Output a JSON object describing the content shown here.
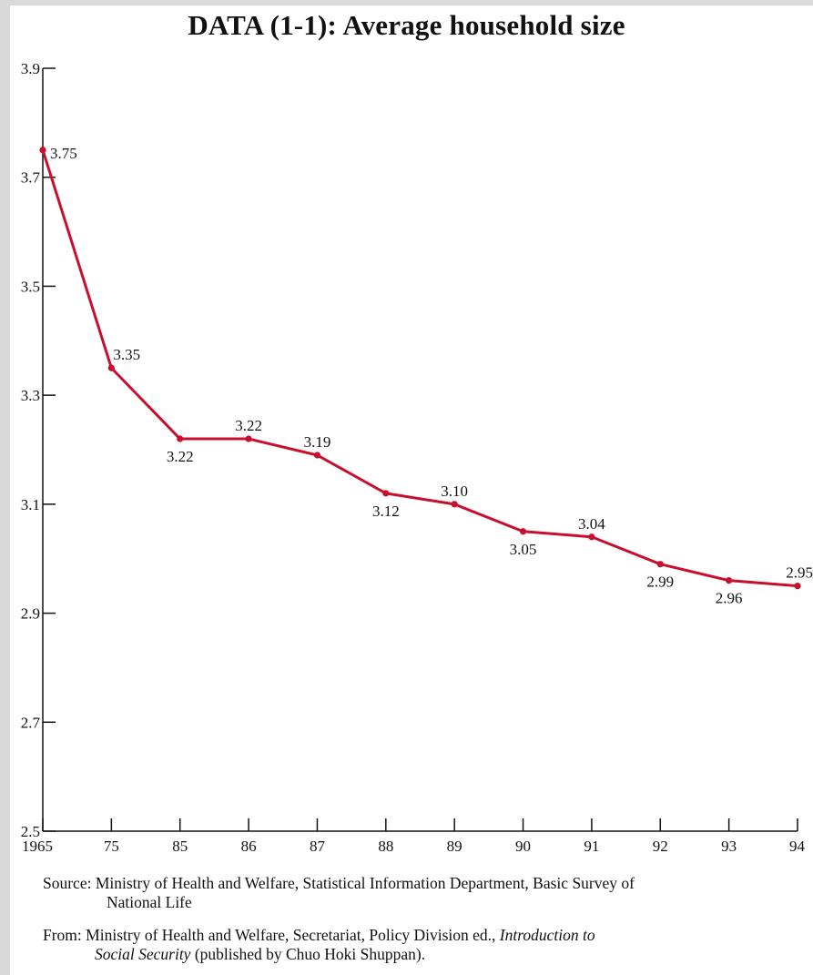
{
  "page": {
    "title": "DATA (1-1): Average household size",
    "source_line1": "Source: Ministry of Health and Welfare, Statistical Information Department, Basic Survey of",
    "source_line2": "National Life",
    "from_line1_a": "From: Ministry of Health and Welfare, Secretariat, Policy Division ed., ",
    "from_line1_b": "Introduction to",
    "from_line2_a": "Social Security",
    "from_line2_b": " (published by Chuo Hoki Shuppan)."
  },
  "colors": {
    "line": "#c8102e",
    "axis": "#111111",
    "background": "#ffffff",
    "page": "#d9d9d9"
  },
  "chart_data": {
    "type": "line",
    "title": "DATA (1-1): Average household size",
    "xlabel": "",
    "ylabel": "",
    "ylim": [
      2.5,
      3.9
    ],
    "yticks": [
      "2.5",
      "2.7",
      "2.9",
      "3.1",
      "3.3",
      "3.5",
      "3.7",
      "3.9"
    ],
    "categories": [
      "1965",
      "75",
      "85",
      "86",
      "87",
      "88",
      "89",
      "90",
      "91",
      "92",
      "93",
      "94"
    ],
    "values": [
      3.75,
      3.35,
      3.22,
      3.22,
      3.19,
      3.12,
      3.1,
      3.05,
      3.04,
      2.99,
      2.96,
      2.95
    ],
    "data_labels": [
      "3.75",
      "3.35",
      "3.22",
      "3.22",
      "3.19",
      "3.12",
      "3.10",
      "3.05",
      "3.04",
      "2.99",
      "2.96",
      "2.95"
    ],
    "label_positions": [
      "right",
      "above",
      "below",
      "above",
      "above",
      "below",
      "above",
      "below",
      "above",
      "below",
      "below",
      "above"
    ],
    "grid": false,
    "legend": "none"
  }
}
